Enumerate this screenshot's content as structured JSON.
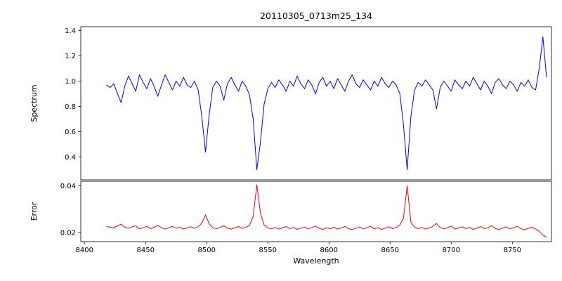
{
  "chart_data": {
    "type": "line",
    "title": "20110305_0713m25_134",
    "xlabel": "Wavelength",
    "xlim": [
      8397,
      8782
    ],
    "grid": false,
    "legend": "none",
    "x_ticks": [
      {
        "v": 8400,
        "label": "8400"
      },
      {
        "v": 8450,
        "label": "8450"
      },
      {
        "v": 8500,
        "label": "8500"
      },
      {
        "v": 8550,
        "label": "8550"
      },
      {
        "v": 8600,
        "label": "8600"
      },
      {
        "v": 8650,
        "label": "8650"
      },
      {
        "v": 8700,
        "label": "8700"
      },
      {
        "v": 8750,
        "label": "8750"
      }
    ],
    "subplots": [
      {
        "name": "spectrum",
        "ylabel": "Spectrum",
        "color": "#0000ff",
        "ylim": [
          0.22,
          1.43
        ],
        "y_ticks": [
          {
            "v": 0.4,
            "label": "0.4"
          },
          {
            "v": 0.6,
            "label": "0.6"
          },
          {
            "v": 0.8,
            "label": "0.8"
          },
          {
            "v": 1.0,
            "label": "1.0"
          },
          {
            "v": 1.2,
            "label": "1.2"
          },
          {
            "v": 1.4,
            "label": "1.4"
          }
        ]
      },
      {
        "name": "error",
        "ylabel": "Error",
        "color": "#ff0000",
        "ylim": [
          0.016,
          0.042
        ],
        "y_ticks": [
          {
            "v": 0.02,
            "label": "0.02"
          },
          {
            "v": 0.04,
            "label": "0.04"
          }
        ]
      }
    ],
    "x": [
      8418,
      8421,
      8424,
      8427,
      8430,
      8433,
      8436,
      8439,
      8442,
      8445,
      8448,
      8451,
      8454,
      8457,
      8460,
      8463,
      8466,
      8469,
      8472,
      8475,
      8478,
      8481,
      8484,
      8487,
      8490,
      8493,
      8496,
      8499,
      8502,
      8505,
      8508,
      8511,
      8514,
      8517,
      8520,
      8523,
      8526,
      8529,
      8532,
      8535,
      8538,
      8541,
      8544,
      8547,
      8550,
      8553,
      8556,
      8559,
      8562,
      8565,
      8568,
      8571,
      8574,
      8577,
      8580,
      8583,
      8586,
      8589,
      8592,
      8595,
      8598,
      8601,
      8604,
      8607,
      8610,
      8613,
      8616,
      8619,
      8622,
      8625,
      8628,
      8631,
      8634,
      8637,
      8640,
      8643,
      8646,
      8649,
      8652,
      8655,
      8658,
      8661,
      8664,
      8667,
      8670,
      8673,
      8676,
      8679,
      8682,
      8685,
      8688,
      8691,
      8694,
      8697,
      8700,
      8703,
      8706,
      8709,
      8712,
      8715,
      8718,
      8721,
      8724,
      8727,
      8730,
      8733,
      8736,
      8739,
      8742,
      8745,
      8748,
      8751,
      8754,
      8757,
      8760,
      8763,
      8766,
      8769,
      8772,
      8775,
      8778
    ],
    "series": [
      {
        "name": "spectrum",
        "values": [
          0.97,
          0.95,
          0.98,
          0.9,
          0.83,
          0.96,
          1.04,
          0.98,
          0.92,
          1.05,
          0.99,
          0.94,
          1.02,
          0.96,
          0.88,
          0.97,
          1.05,
          0.99,
          0.93,
          1.0,
          0.96,
          1.03,
          0.97,
          0.95,
          1.0,
          0.93,
          0.72,
          0.44,
          0.73,
          0.95,
          1.0,
          0.96,
          0.85,
          0.98,
          1.03,
          0.97,
          0.92,
          1.0,
          0.96,
          0.89,
          0.7,
          0.3,
          0.52,
          0.82,
          0.94,
          0.99,
          0.95,
          1.01,
          0.97,
          0.92,
          1.0,
          0.96,
          1.04,
          0.98,
          0.94,
          1.01,
          0.97,
          0.9,
          0.99,
          1.03,
          0.96,
          1.0,
          0.94,
          1.02,
          0.97,
          0.92,
          1.0,
          1.05,
          0.98,
          0.95,
          1.01,
          0.97,
          0.93,
          1.0,
          0.96,
          1.03,
          0.98,
          0.95,
          1.0,
          0.97,
          0.9,
          0.65,
          0.3,
          0.72,
          0.93,
          0.99,
          0.96,
          1.01,
          0.97,
          0.93,
          0.78,
          0.95,
          1.0,
          0.96,
          0.92,
          1.01,
          0.97,
          0.94,
          1.0,
          0.96,
          1.03,
          0.98,
          0.93,
          1.0,
          0.96,
          0.9,
          0.99,
          1.02,
          0.97,
          0.94,
          1.0,
          0.97,
          0.92,
          0.99,
          0.96,
          1.01,
          0.95,
          0.93,
          1.1,
          1.35,
          1.03
        ]
      },
      {
        "name": "error",
        "values": [
          0.0225,
          0.0222,
          0.022,
          0.0228,
          0.0235,
          0.0222,
          0.0218,
          0.0224,
          0.0228,
          0.0215,
          0.022,
          0.0226,
          0.0216,
          0.0222,
          0.023,
          0.022,
          0.0214,
          0.022,
          0.0226,
          0.0218,
          0.0222,
          0.0214,
          0.022,
          0.0224,
          0.0218,
          0.0224,
          0.024,
          0.0275,
          0.0238,
          0.022,
          0.0216,
          0.0221,
          0.0229,
          0.0218,
          0.0214,
          0.022,
          0.0225,
          0.0217,
          0.0221,
          0.023,
          0.0268,
          0.0405,
          0.0282,
          0.0232,
          0.022,
          0.0215,
          0.0221,
          0.0214,
          0.0219,
          0.0225,
          0.0216,
          0.0221,
          0.0213,
          0.0218,
          0.0223,
          0.0215,
          0.022,
          0.0227,
          0.0217,
          0.0213,
          0.022,
          0.0215,
          0.0222,
          0.0214,
          0.0219,
          0.0226,
          0.0216,
          0.0212,
          0.0218,
          0.0223,
          0.0215,
          0.022,
          0.0226,
          0.0215,
          0.022,
          0.0213,
          0.0218,
          0.0224,
          0.0216,
          0.0221,
          0.0232,
          0.0262,
          0.04,
          0.0244,
          0.0222,
          0.0216,
          0.0221,
          0.0214,
          0.0219,
          0.0226,
          0.0238,
          0.0221,
          0.0215,
          0.022,
          0.0227,
          0.0214,
          0.0219,
          0.0224,
          0.0216,
          0.0221,
          0.0213,
          0.0218,
          0.0225,
          0.0216,
          0.022,
          0.0229,
          0.0217,
          0.0212,
          0.0219,
          0.0224,
          0.0215,
          0.022,
          0.0226,
          0.0216,
          0.0211,
          0.0217,
          0.0222,
          0.0214,
          0.0205,
          0.0188,
          0.018
        ]
      }
    ]
  }
}
